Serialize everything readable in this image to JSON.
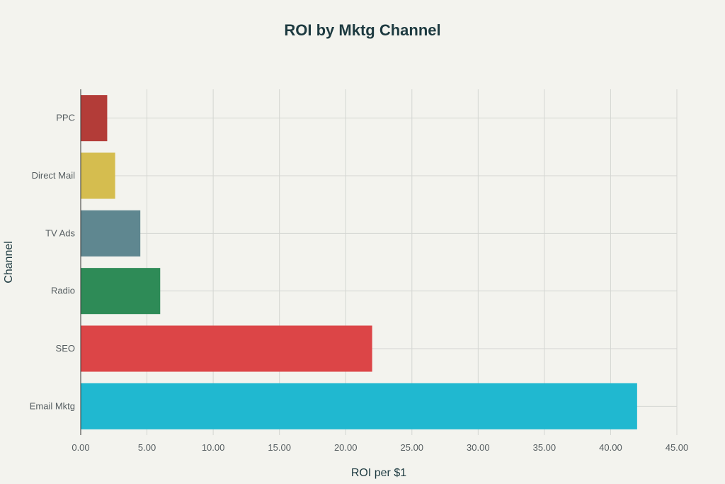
{
  "chart_data": {
    "type": "bar",
    "orientation": "horizontal",
    "title": "ROI by Mktg Channel",
    "xlabel": "ROI per $1",
    "ylabel": "Channel",
    "categories": [
      "PPC",
      "Direct Mail",
      "TV Ads",
      "Radio",
      "SEO",
      "Email Mktg"
    ],
    "values": [
      2,
      2.6,
      4.5,
      6,
      22,
      42
    ],
    "colors": [
      "#b33c38",
      "#d5bd4f",
      "#5f8790",
      "#2e8b57",
      "#dc4547",
      "#20b8d0"
    ],
    "xlim": [
      0,
      45
    ],
    "xticks": [
      0,
      5,
      10,
      15,
      20,
      25,
      30,
      35,
      40,
      45
    ],
    "xtick_labels": [
      "0.00",
      "5.00",
      "10.00",
      "15.00",
      "20.00",
      "25.00",
      "30.00",
      "35.00",
      "40.00",
      "45.00"
    ],
    "grid": true,
    "legend": "none"
  }
}
